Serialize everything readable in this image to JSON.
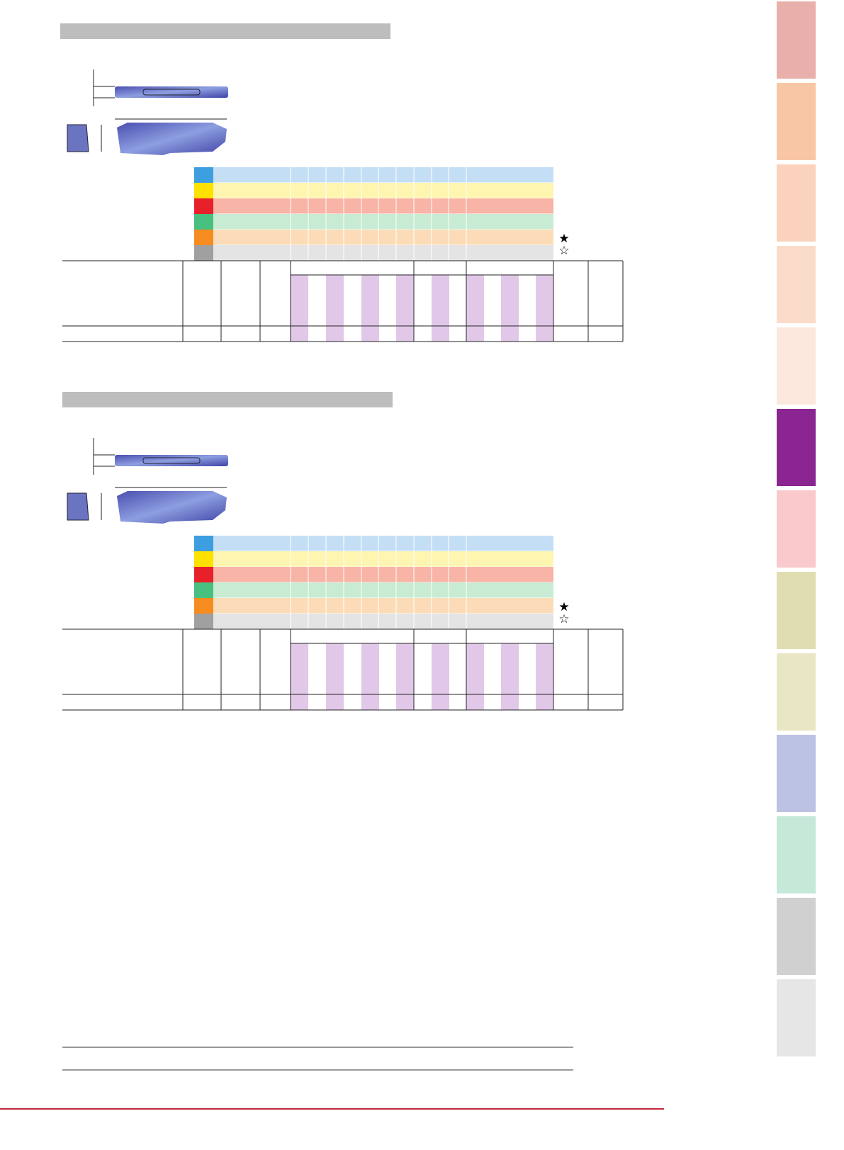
{
  "sections": [
    {
      "legend": [
        "★",
        "☆"
      ]
    },
    {
      "legend": [
        "★",
        "☆"
      ]
    }
  ]
}
